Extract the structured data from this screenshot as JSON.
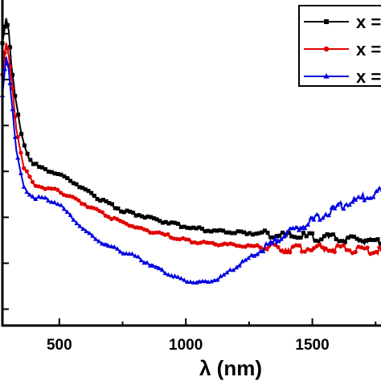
{
  "chart_data": {
    "type": "line",
    "title": "",
    "xlabel": "λ (nm)",
    "ylabel": "",
    "xlim": [
      275,
      1800
    ],
    "ylim": [
      0,
      1.0
    ],
    "x_ticks": [
      500,
      1000,
      1500
    ],
    "x_tick_labels": [
      "500",
      "1000",
      "1500"
    ],
    "grid": false,
    "legend": "top-right",
    "series": [
      {
        "name": "x =",
        "color": "#000000",
        "marker": "square",
        "points": [
          [
            275,
            0.86
          ],
          [
            290,
            0.94
          ],
          [
            300,
            0.9
          ],
          [
            310,
            0.8
          ],
          [
            325,
            0.7
          ],
          [
            350,
            0.58
          ],
          [
            380,
            0.51
          ],
          [
            420,
            0.48
          ],
          [
            470,
            0.47
          ],
          [
            550,
            0.44
          ],
          [
            650,
            0.39
          ],
          [
            750,
            0.35
          ],
          [
            850,
            0.33
          ],
          [
            950,
            0.31
          ],
          [
            1000,
            0.3
          ],
          [
            1100,
            0.29
          ],
          [
            1200,
            0.285
          ],
          [
            1300,
            0.28
          ],
          [
            1400,
            0.275
          ],
          [
            1500,
            0.27
          ],
          [
            1600,
            0.265
          ],
          [
            1700,
            0.26
          ],
          [
            1800,
            0.255
          ]
        ]
      },
      {
        "name": "x =",
        "color": "#e00000",
        "marker": "circle",
        "points": [
          [
            275,
            0.77
          ],
          [
            290,
            0.86
          ],
          [
            300,
            0.82
          ],
          [
            315,
            0.72
          ],
          [
            330,
            0.6
          ],
          [
            360,
            0.48
          ],
          [
            400,
            0.43
          ],
          [
            450,
            0.42
          ],
          [
            500,
            0.41
          ],
          [
            600,
            0.37
          ],
          [
            700,
            0.33
          ],
          [
            800,
            0.3
          ],
          [
            900,
            0.28
          ],
          [
            1000,
            0.26
          ],
          [
            1100,
            0.25
          ],
          [
            1200,
            0.245
          ],
          [
            1300,
            0.24
          ],
          [
            1400,
            0.235
          ],
          [
            1500,
            0.235
          ],
          [
            1600,
            0.235
          ],
          [
            1700,
            0.23
          ],
          [
            1800,
            0.225
          ]
        ]
      },
      {
        "name": "x =",
        "color": "#0000e0",
        "marker": "triangle",
        "points": [
          [
            275,
            0.7
          ],
          [
            290,
            0.82
          ],
          [
            300,
            0.78
          ],
          [
            315,
            0.66
          ],
          [
            330,
            0.53
          ],
          [
            360,
            0.42
          ],
          [
            400,
            0.39
          ],
          [
            450,
            0.385
          ],
          [
            500,
            0.37
          ],
          [
            550,
            0.33
          ],
          [
            600,
            0.29
          ],
          [
            650,
            0.26
          ],
          [
            700,
            0.24
          ],
          [
            800,
            0.21
          ],
          [
            900,
            0.17
          ],
          [
            950,
            0.15
          ],
          [
            1000,
            0.135
          ],
          [
            1060,
            0.13
          ],
          [
            1100,
            0.135
          ],
          [
            1150,
            0.15
          ],
          [
            1200,
            0.18
          ],
          [
            1300,
            0.23
          ],
          [
            1400,
            0.28
          ],
          [
            1500,
            0.32
          ],
          [
            1600,
            0.36
          ],
          [
            1700,
            0.39
          ],
          [
            1800,
            0.42
          ]
        ]
      }
    ]
  }
}
